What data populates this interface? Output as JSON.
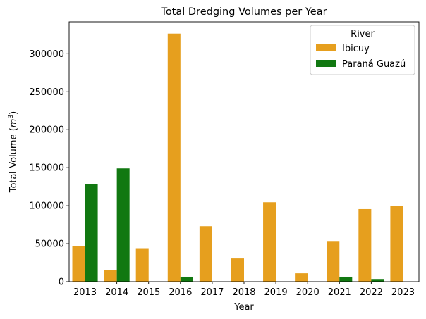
{
  "chart_data": {
    "type": "bar",
    "title": "Total Dredging Volumes per Year",
    "xlabel": "Year",
    "ylabel": "Total Volume (m³)",
    "ylabel_prefix": "Total Volume (",
    "ylabel_unit": "m",
    "ylabel_exp": "3",
    "ylabel_suffix": ")",
    "ylim": [
      0,
      342000
    ],
    "yticks": [
      0,
      50000,
      100000,
      150000,
      200000,
      250000,
      300000
    ],
    "grid": false,
    "legend_position": "top-right",
    "legend_title": "River",
    "categories": [
      "2013",
      "2014",
      "2015",
      "2016",
      "2017",
      "2018",
      "2019",
      "2020",
      "2021",
      "2022",
      "2023"
    ],
    "series": [
      {
        "name": "Ibicuy",
        "color": "#e69f1e",
        "values": [
          47000,
          15000,
          44000,
          326500,
          73000,
          30500,
          104500,
          11000,
          53500,
          95500,
          100000
        ]
      },
      {
        "name": "Paraná Guazú",
        "color": "#117811",
        "values": [
          128000,
          149000,
          0,
          6500,
          0,
          0,
          0,
          0,
          6500,
          3500,
          0
        ]
      }
    ]
  }
}
